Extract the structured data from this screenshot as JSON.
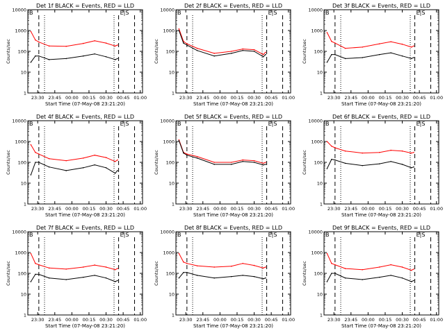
{
  "figure": {
    "xlabel": "Start Time (07-May-08 23:21:20)",
    "ylabel": "Counts/sec",
    "x_ticks": [
      "23:30",
      "23:45",
      "00:00",
      "00:15",
      "00:30",
      "00:45",
      "01:00"
    ],
    "y_ticks": [
      "1",
      "10",
      "100",
      "1000",
      "10000"
    ],
    "corner_labels": {
      "left": "B",
      "right": "E|S"
    },
    "colors": {
      "events": "#000000",
      "lld": "#ff0000",
      "axes": "#000000"
    }
  },
  "chart_data": [
    {
      "type": "line",
      "title": "Det 1f BLACK = Events, RED = LLD",
      "y_scale": "log",
      "ylim": [
        1,
        10000
      ],
      "x": [
        "23:24",
        "23:28",
        "23:31",
        "23:40",
        "23:55",
        "00:10",
        "00:20",
        "00:30",
        "00:38",
        "00:40"
      ],
      "series": [
        {
          "values": [
            30,
            60,
            60,
            40,
            45,
            60,
            75,
            55,
            40,
            45
          ]
        },
        {
          "values": [
            900,
            350,
            280,
            180,
            175,
            240,
            320,
            250,
            180,
            200
          ]
        }
      ],
      "dashed_x": [
        "23:31",
        "00:41",
        "00:55"
      ],
      "dotted_x": [
        "23:36",
        "00:37"
      ]
    },
    {
      "type": "line",
      "title": "Det 2f BLACK = Events, RED = LLD",
      "y_scale": "log",
      "ylim": [
        1,
        10000
      ],
      "x": [
        "23:24",
        "23:28",
        "23:31",
        "23:40",
        "23:55",
        "00:10",
        "00:20",
        "00:30",
        "00:38",
        "00:40"
      ],
      "series": [
        {
          "values": [
            1000,
            250,
            200,
            110,
            60,
            80,
            110,
            100,
            55,
            70
          ]
        },
        {
          "values": [
            1200,
            300,
            230,
            140,
            80,
            100,
            130,
            120,
            70,
            90
          ]
        }
      ],
      "dashed_x": [
        "23:31",
        "00:41",
        "00:55"
      ],
      "dotted_x": [
        "23:36",
        "00:37"
      ]
    },
    {
      "type": "line",
      "title": "Det 3f BLACK = Events, RED = LLD",
      "y_scale": "log",
      "ylim": [
        1,
        10000
      ],
      "x": [
        "23:24",
        "23:28",
        "23:31",
        "23:40",
        "23:55",
        "00:10",
        "00:20",
        "00:30",
        "00:38",
        "00:40"
      ],
      "series": [
        {
          "values": [
            30,
            70,
            70,
            45,
            50,
            70,
            85,
            60,
            45,
            50
          ]
        },
        {
          "values": [
            800,
            300,
            250,
            140,
            160,
            230,
            290,
            220,
            160,
            180
          ]
        }
      ],
      "dashed_x": [
        "23:31",
        "00:41",
        "00:55"
      ],
      "dotted_x": [
        "23:36",
        "00:37"
      ]
    },
    {
      "type": "line",
      "title": "Det 4f BLACK = Events, RED = LLD",
      "y_scale": "log",
      "ylim": [
        1,
        10000
      ],
      "x": [
        "23:24",
        "23:28",
        "23:31",
        "23:40",
        "23:55",
        "00:10",
        "00:20",
        "00:30",
        "00:38",
        "00:40"
      ],
      "series": [
        {
          "values": [
            25,
            100,
            100,
            60,
            40,
            55,
            75,
            55,
            30,
            40
          ]
        },
        {
          "values": [
            700,
            300,
            250,
            150,
            120,
            160,
            220,
            170,
            110,
            130
          ]
        }
      ],
      "dashed_x": [
        "23:31",
        "00:41",
        "00:55"
      ],
      "dotted_x": [
        "23:36",
        "00:37"
      ]
    },
    {
      "type": "line",
      "title": "Det 5f BLACK = Events, RED = LLD",
      "y_scale": "log",
      "ylim": [
        1,
        10000
      ],
      "x": [
        "23:24",
        "23:28",
        "23:31",
        "23:40",
        "23:55",
        "00:10",
        "00:20",
        "00:30",
        "00:38",
        "00:40"
      ],
      "series": [
        {
          "values": [
            1100,
            280,
            220,
            160,
            80,
            80,
            110,
            100,
            75,
            80
          ]
        },
        {
          "values": [
            1200,
            300,
            250,
            190,
            100,
            100,
            130,
            120,
            90,
            100
          ]
        }
      ],
      "dashed_x": [
        "23:31",
        "00:41",
        "00:55"
      ],
      "dotted_x": [
        "23:36",
        "00:37"
      ]
    },
    {
      "type": "line",
      "title": "Det 6f BLACK = Events, RED = LLD",
      "y_scale": "log",
      "ylim": [
        1,
        10000
      ],
      "x": [
        "23:24",
        "23:28",
        "23:31",
        "23:40",
        "23:55",
        "00:10",
        "00:20",
        "00:30",
        "00:38",
        "00:40"
      ],
      "series": [
        {
          "values": [
            50,
            140,
            130,
            90,
            70,
            85,
            110,
            80,
            55,
            60
          ]
        },
        {
          "values": [
            1000,
            600,
            500,
            350,
            280,
            300,
            380,
            350,
            280,
            300
          ]
        }
      ],
      "dashed_x": [
        "23:31",
        "00:41",
        "00:55"
      ],
      "dotted_x": [
        "23:36",
        "00:37"
      ]
    },
    {
      "type": "line",
      "title": "Det 7f BLACK = Events, RED = LLD",
      "y_scale": "log",
      "ylim": [
        1,
        10000
      ],
      "x": [
        "23:24",
        "23:28",
        "23:31",
        "23:40",
        "23:55",
        "00:10",
        "00:20",
        "00:30",
        "00:38",
        "00:40"
      ],
      "series": [
        {
          "values": [
            40,
            90,
            90,
            60,
            50,
            65,
            80,
            60,
            40,
            45
          ]
        },
        {
          "values": [
            900,
            300,
            260,
            180,
            160,
            200,
            250,
            200,
            150,
            170
          ]
        }
      ],
      "dashed_x": [
        "23:31",
        "00:41",
        "00:55"
      ],
      "dotted_x": [
        "23:36",
        "00:37"
      ]
    },
    {
      "type": "line",
      "title": "Det 8f BLACK = Events, RED = LLD",
      "y_scale": "log",
      "ylim": [
        1,
        10000
      ],
      "x": [
        "23:24",
        "23:28",
        "23:31",
        "23:40",
        "23:55",
        "00:10",
        "00:20",
        "00:30",
        "00:38",
        "00:40"
      ],
      "series": [
        {
          "values": [
            60,
            110,
            110,
            80,
            60,
            70,
            80,
            70,
            55,
            60
          ]
        },
        {
          "values": [
            900,
            350,
            300,
            230,
            200,
            220,
            300,
            240,
            180,
            200
          ]
        }
      ],
      "dashed_x": [
        "23:31",
        "00:41",
        "00:55"
      ],
      "dotted_x": [
        "23:36",
        "00:37"
      ]
    },
    {
      "type": "line",
      "title": "Det 9f BLACK = Events, RED = LLD",
      "y_scale": "log",
      "ylim": [
        1,
        10000
      ],
      "x": [
        "23:24",
        "23:28",
        "23:31",
        "23:40",
        "23:55",
        "00:10",
        "00:20",
        "00:30",
        "00:38",
        "00:40"
      ],
      "series": [
        {
          "values": [
            40,
            100,
            100,
            60,
            50,
            65,
            80,
            60,
            40,
            45
          ]
        },
        {
          "values": [
            900,
            300,
            260,
            170,
            150,
            200,
            260,
            200,
            140,
            160
          ]
        }
      ],
      "dashed_x": [
        "23:31",
        "00:41",
        "00:55"
      ],
      "dotted_x": [
        "23:36",
        "00:37"
      ]
    }
  ]
}
